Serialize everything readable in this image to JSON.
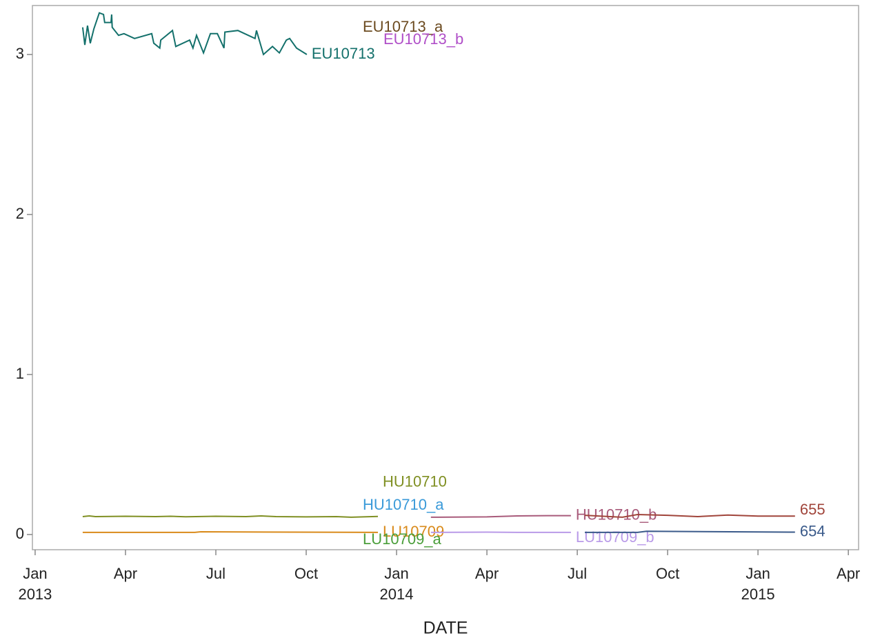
{
  "chart_data": {
    "type": "line",
    "x_label": "DATE",
    "xlim": [
      -0.09,
      27.34
    ],
    "xticks": [
      {
        "value": 0,
        "label": [
          "Jan",
          "2013"
        ]
      },
      {
        "value": 3,
        "label": [
          "Apr"
        ]
      },
      {
        "value": 6,
        "label": [
          "Jul"
        ]
      },
      {
        "value": 9,
        "label": [
          "Oct"
        ]
      },
      {
        "value": 12,
        "label": [
          "Jan",
          "2014"
        ]
      },
      {
        "value": 15,
        "label": [
          "Apr"
        ]
      },
      {
        "value": 18,
        "label": [
          "Jul"
        ]
      },
      {
        "value": 21,
        "label": [
          "Oct"
        ]
      },
      {
        "value": 24,
        "label": [
          "Jan",
          "2015"
        ]
      },
      {
        "value": 27,
        "label": [
          "Apr"
        ]
      }
    ],
    "ylim": [
      -0.095,
      3.306
    ],
    "yticks": [
      0,
      1,
      2,
      3
    ],
    "series": [
      {
        "name": "EU10713",
        "color": "#13706b",
        "x": [
          1.58,
          1.65,
          1.74,
          1.83,
          1.95,
          2.13,
          2.27,
          2.31,
          2.52,
          2.54,
          2.56,
          2.77,
          2.95,
          3.3,
          3.87,
          3.94,
          4.14,
          4.17,
          4.56,
          4.67,
          5.13,
          5.24,
          5.36,
          5.59,
          5.82,
          6.05,
          6.27,
          6.3,
          6.73,
          7.3,
          7.35,
          7.58,
          7.88,
          8.11,
          8.34,
          8.45,
          8.68,
          9.02
        ],
        "values": [
          3.17,
          3.06,
          3.18,
          3.07,
          3.16,
          3.26,
          3.25,
          3.2,
          3.2,
          3.25,
          3.17,
          3.12,
          3.13,
          3.1,
          3.13,
          3.07,
          3.04,
          3.09,
          3.15,
          3.05,
          3.09,
          3.04,
          3.12,
          3.01,
          3.13,
          3.13,
          3.04,
          3.14,
          3.15,
          3.1,
          3.15,
          3.0,
          3.05,
          3.01,
          3.09,
          3.1,
          3.04,
          3.0
        ]
      },
      {
        "name": "HU10710",
        "color": "#7f8f22",
        "x": [
          1.58,
          1.8,
          2.0,
          3.0,
          4.0,
          4.5,
          5.0,
          6.0,
          7.0,
          7.5,
          8.0,
          9.0,
          10.0,
          10.5,
          11.38
        ],
        "values": [
          0.112,
          0.116,
          0.112,
          0.114,
          0.112,
          0.114,
          0.111,
          0.114,
          0.112,
          0.116,
          0.112,
          0.11,
          0.112,
          0.108,
          0.113
        ]
      },
      {
        "name": "LU10709",
        "color": "#d98a1a",
        "x": [
          1.58,
          5.3,
          5.5,
          11.38
        ],
        "values": [
          0.013,
          0.013,
          0.017,
          0.013
        ]
      },
      {
        "name": "HU10710_b",
        "color": "#a85a7a",
        "x": [
          13.14,
          15.0,
          16.0,
          17.0,
          17.79
        ],
        "values": [
          0.108,
          0.11,
          0.116,
          0.118,
          0.118
        ]
      },
      {
        "name": "LU10709_b",
        "color": "#b99ae8",
        "x": [
          13.14,
          15.0,
          16.0,
          17.79
        ],
        "values": [
          0.013,
          0.015,
          0.013,
          0.013
        ]
      },
      {
        "name": "655",
        "color": "#a0443a",
        "x": [
          18.25,
          19.5,
          20.0,
          21.0,
          22.0,
          23.0,
          24.0,
          25.23
        ],
        "values": [
          0.12,
          0.108,
          0.125,
          0.12,
          0.112,
          0.122,
          0.115,
          0.115
        ]
      },
      {
        "name": "654",
        "color": "#3a5a8a",
        "x": [
          18.25,
          20.0,
          20.3,
          25.23
        ],
        "values": [
          0.013,
          0.013,
          0.02,
          0.015
        ]
      }
    ],
    "unplotted_series": [
      {
        "name": "EU10713_a",
        "color": "#6b4a1f"
      },
      {
        "name": "EU10713_b",
        "color": "#b04fc8"
      },
      {
        "name": "HU10710_a",
        "color": "#3a9ad9"
      },
      {
        "name": "LU10709_a",
        "color": "#4a9e3a"
      }
    ]
  }
}
